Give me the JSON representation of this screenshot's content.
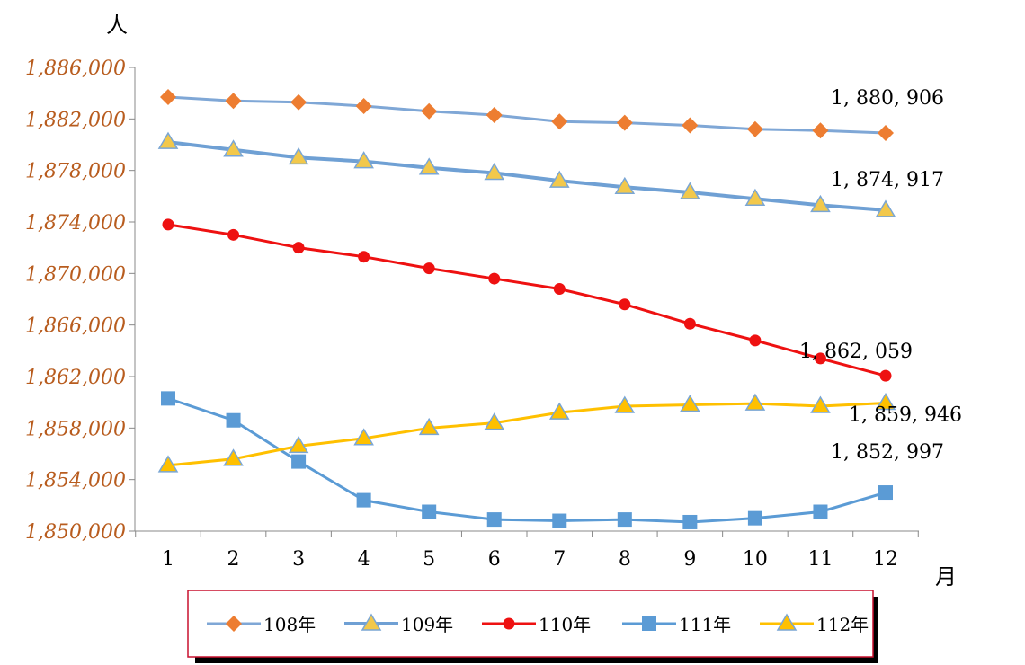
{
  "chart_data": {
    "type": "line",
    "ylabel": "人",
    "xlabel": "月",
    "x": [
      1,
      2,
      3,
      4,
      5,
      6,
      7,
      8,
      9,
      10,
      11,
      12
    ],
    "ylim": [
      1850000,
      1886000
    ],
    "yticks": [
      1850000,
      1854000,
      1858000,
      1862000,
      1866000,
      1870000,
      1874000,
      1878000,
      1882000,
      1886000
    ],
    "ytick_labels": [
      "1,850,000",
      "1,854,000",
      "1,858,000",
      "1,862,000",
      "1,866,000",
      "1,870,000",
      "1,874,000",
      "1,878,000",
      "1,882,000",
      "1,886,000"
    ],
    "legend_position": "bottom",
    "series": [
      {
        "name": "108年",
        "marker": "diamond",
        "line_color": "#7fa7d6",
        "marker_color": "#ed7d31",
        "values": [
          1883700,
          1883400,
          1883300,
          1883000,
          1882600,
          1882300,
          1881800,
          1881700,
          1881500,
          1881200,
          1881100,
          1880906
        ],
        "end_label": "1, 880, 906"
      },
      {
        "name": "109年",
        "marker": "triangle",
        "line_color": "#6fa0d4",
        "marker_color": "#f2c84b",
        "values": [
          1880200,
          1879600,
          1879000,
          1878700,
          1878200,
          1877800,
          1877200,
          1876700,
          1876300,
          1875800,
          1875300,
          1874917
        ],
        "end_label": "1, 874, 917"
      },
      {
        "name": "110年",
        "marker": "circle",
        "line_color": "#ee1111",
        "marker_color": "#ee1111",
        "values": [
          1873800,
          1873000,
          1872000,
          1871300,
          1870400,
          1869600,
          1868800,
          1867600,
          1866100,
          1864800,
          1863400,
          1862059
        ],
        "end_label": "1, 862, 059"
      },
      {
        "name": "111年",
        "marker": "square",
        "line_color": "#5b9bd5",
        "marker_color": "#5b9bd5",
        "values": [
          1860300,
          1858600,
          1855400,
          1852400,
          1851500,
          1850900,
          1850800,
          1850900,
          1850700,
          1851000,
          1851500,
          1852997
        ],
        "end_label": "1, 852, 997"
      },
      {
        "name": "112年",
        "marker": "triangle",
        "line_color": "#ffc000",
        "marker_color": "#ffc000",
        "values": [
          1855100,
          1855600,
          1856600,
          1857200,
          1858000,
          1858400,
          1859200,
          1859700,
          1859800,
          1859900,
          1859700,
          1859946
        ],
        "end_label": "1, 859, 946"
      }
    ]
  }
}
